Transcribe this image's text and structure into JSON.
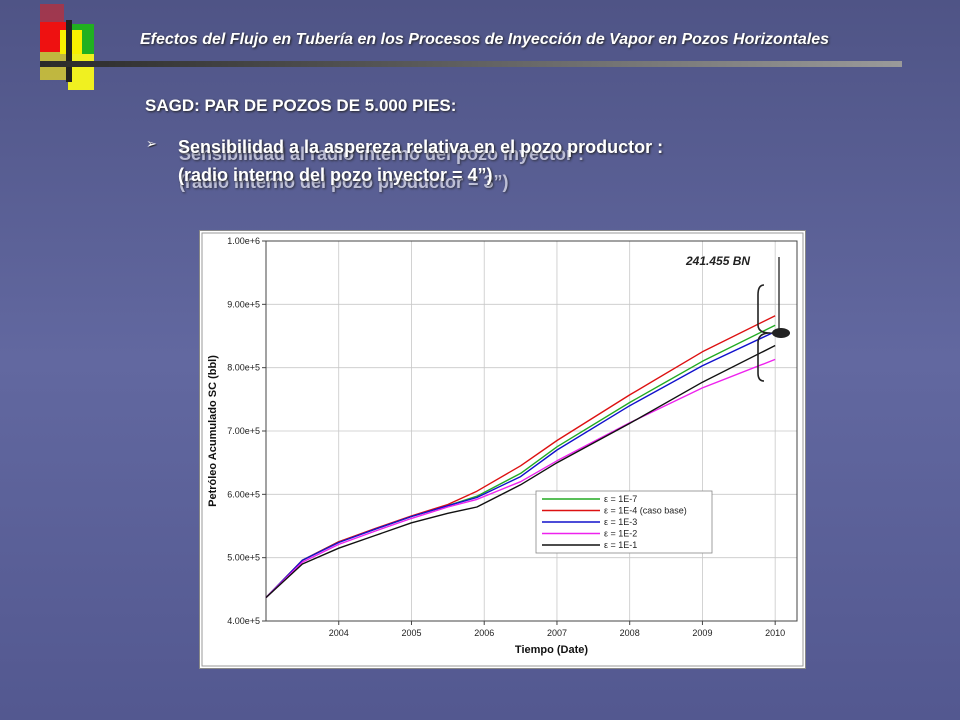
{
  "header": {
    "title": "Efectos del Flujo en Tubería en los Procesos de Inyección de Vapor en Pozos Horizontales"
  },
  "section": {
    "title": "SAGD: PAR DE POZOS DE 5.000 PIES:"
  },
  "bullet": {
    "line1": "Sensibilidad a la aspereza relativa en el pozo productor :",
    "line2": "(radio interno del pozo inyector = 4”)",
    "ghost_line1": "Sensibilidad al radio interno del pozo inyector :",
    "ghost_line2": "(radio interno del pozo productor = 3”)"
  },
  "colors": {
    "background": "#5c6294",
    "green": "#22aa22",
    "red": "#dd1111",
    "blue": "#1111cc",
    "magenta": "#ee22ee",
    "black": "#111111"
  },
  "chart_data": {
    "type": "line",
    "xlabel": "Tiempo (Date)",
    "ylabel": "Petróleo Acumulado SC (bbl)",
    "xlim": [
      2003.0,
      2010.3
    ],
    "ylim": [
      400000,
      1000000
    ],
    "x_ticks": [
      2004,
      2005,
      2006,
      2007,
      2008,
      2009,
      2010
    ],
    "x_tick_labels": [
      "2004",
      "2005",
      "2006",
      "2007",
      "2008",
      "2009",
      "2010"
    ],
    "y_ticks": [
      400000,
      500000,
      600000,
      700000,
      800000,
      900000,
      1000000
    ],
    "y_tick_labels": [
      "4.00e+5",
      "5.00e+5",
      "6.00e+5",
      "7.00e+5",
      "8.00e+5",
      "9.00e+5",
      "1.00e+6"
    ],
    "x": [
      2003.0,
      2003.5,
      2004.0,
      2004.5,
      2005.0,
      2005.5,
      2005.9,
      2006.5,
      2007.0,
      2008.0,
      2009.0,
      2010.0
    ],
    "series": [
      {
        "name": "ε = 1E-7",
        "color_key": "green",
        "values": [
          437000,
          496000,
          525000,
          545000,
          565000,
          582000,
          597000,
          633000,
          675000,
          745000,
          810000,
          867000
        ]
      },
      {
        "name": "ε = 1E-4  (caso base)",
        "color_key": "red",
        "values": [
          437000,
          496000,
          525000,
          546000,
          566000,
          584000,
          605000,
          645000,
          685000,
          757000,
          825000,
          882000
        ]
      },
      {
        "name": "ε = 1E-3",
        "color_key": "blue",
        "values": [
          437000,
          496000,
          524000,
          545000,
          565000,
          582000,
          595000,
          628000,
          670000,
          740000,
          803000,
          857000
        ]
      },
      {
        "name": "ε = 1E-2",
        "color_key": "magenta",
        "values": [
          437000,
          493000,
          521000,
          542000,
          562000,
          580000,
          592000,
          620000,
          653000,
          713000,
          768000,
          813000
        ]
      },
      {
        "name": "ε = 1E-1",
        "color_key": "black",
        "values": [
          437000,
          490000,
          515000,
          535000,
          555000,
          570000,
          580000,
          615000,
          650000,
          712000,
          777000,
          835000
        ]
      }
    ],
    "legend_position": "lower-right",
    "grid": true,
    "annotation": {
      "text": "241.455 BN"
    }
  }
}
